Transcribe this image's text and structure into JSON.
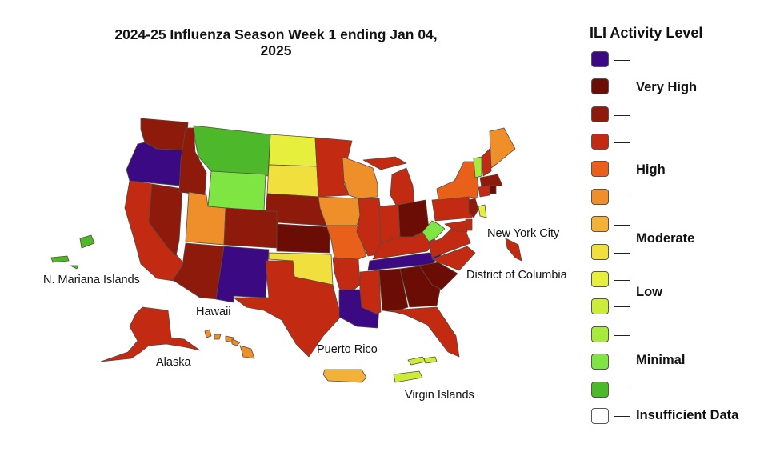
{
  "title": {
    "line1": "2024-25 Influenza Season Week 1 ending Jan 04,",
    "line2": "2025"
  },
  "legend": {
    "title": "ILI Activity Level",
    "colors": [
      "#3b0a82",
      "#6b0d05",
      "#8e1a0c",
      "#c22a12",
      "#e8601a",
      "#ef8f29",
      "#f3b136",
      "#f0df3c",
      "#e5ef3c",
      "#ccec3a",
      "#a7ea3a",
      "#7ee542",
      "#4db82a",
      "#ffffff"
    ],
    "groups": [
      {
        "label": "Very High"
      },
      {
        "label": "High"
      },
      {
        "label": "Moderate"
      },
      {
        "label": "Low"
      },
      {
        "label": "Minimal"
      }
    ],
    "insufficient_label": "Insufficient Data"
  },
  "map_labels": {
    "new_york_city": "New York City",
    "district_of_columbia": "District of Columbia",
    "n_mariana_islands": "N. Mariana Islands",
    "hawaii": "Hawaii",
    "alaska": "Alaska",
    "puerto_rico": "Puerto Rico",
    "virgin_islands": "Virgin Islands"
  },
  "jurisdictions": [
    {
      "name": "Washington",
      "level": 2
    },
    {
      "name": "Oregon",
      "level": 0
    },
    {
      "name": "California",
      "level": 3
    },
    {
      "name": "Nevada",
      "level": 2
    },
    {
      "name": "Idaho",
      "level": 2
    },
    {
      "name": "Montana",
      "level": 12
    },
    {
      "name": "Wyoming",
      "level": 11
    },
    {
      "name": "Utah",
      "level": 5
    },
    {
      "name": "Arizona",
      "level": 2
    },
    {
      "name": "Colorado",
      "level": 2
    },
    {
      "name": "New Mexico",
      "level": 0
    },
    {
      "name": "North Dakota",
      "level": 8
    },
    {
      "name": "South Dakota",
      "level": 7
    },
    {
      "name": "Nebraska",
      "level": 2
    },
    {
      "name": "Kansas",
      "level": 1
    },
    {
      "name": "Oklahoma",
      "level": 7
    },
    {
      "name": "Texas",
      "level": 3
    },
    {
      "name": "Minnesota",
      "level": 3
    },
    {
      "name": "Iowa",
      "level": 5
    },
    {
      "name": "Missouri",
      "level": 4
    },
    {
      "name": "Arkansas",
      "level": 3
    },
    {
      "name": "Louisiana",
      "level": 0
    },
    {
      "name": "Wisconsin",
      "level": 5
    },
    {
      "name": "Illinois",
      "level": 3
    },
    {
      "name": "Michigan",
      "level": 3
    },
    {
      "name": "Indiana",
      "level": 3
    },
    {
      "name": "Ohio",
      "level": 1
    },
    {
      "name": "Kentucky",
      "level": 3
    },
    {
      "name": "Tennessee",
      "level": 0
    },
    {
      "name": "Mississippi",
      "level": 3
    },
    {
      "name": "Alabama",
      "level": 1
    },
    {
      "name": "Georgia",
      "level": 1
    },
    {
      "name": "Florida",
      "level": 3
    },
    {
      "name": "South Carolina",
      "level": 1
    },
    {
      "name": "North Carolina",
      "level": 3
    },
    {
      "name": "Virginia",
      "level": 3
    },
    {
      "name": "West Virginia",
      "level": 11
    },
    {
      "name": "Pennsylvania",
      "level": 3
    },
    {
      "name": "New York",
      "level": 4
    },
    {
      "name": "Vermont",
      "level": 10
    },
    {
      "name": "New Hampshire",
      "level": 3
    },
    {
      "name": "Maine",
      "level": 5
    },
    {
      "name": "Massachusetts",
      "level": 2
    },
    {
      "name": "Connecticut",
      "level": 3
    },
    {
      "name": "Rhode Island",
      "level": 1
    },
    {
      "name": "New Jersey",
      "level": 2
    },
    {
      "name": "Maryland",
      "level": 3
    },
    {
      "name": "Delaware",
      "level": 3
    },
    {
      "name": "New York City",
      "level": 8
    },
    {
      "name": "District of Columbia",
      "level": 3
    },
    {
      "name": "Alaska",
      "level": 3
    },
    {
      "name": "Hawaii",
      "level": 5
    },
    {
      "name": "Puerto Rico",
      "level": 6
    },
    {
      "name": "Virgin Islands",
      "level": 9
    },
    {
      "name": "N. Mariana Islands",
      "level": 12
    }
  ]
}
